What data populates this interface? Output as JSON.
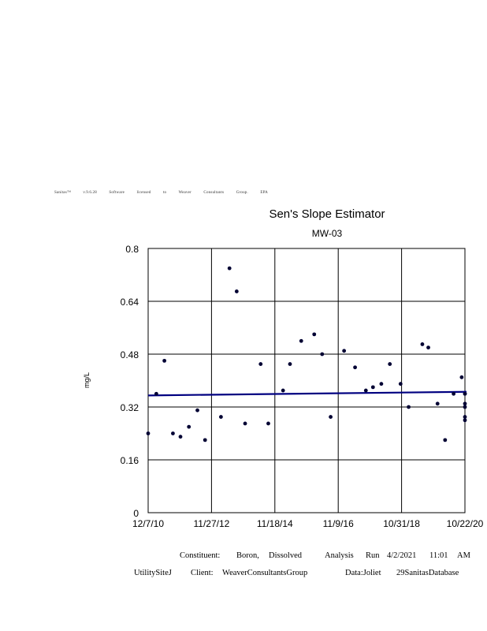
{
  "credit": [
    "Sanitas™",
    "v.9.6.28",
    "Software",
    "licensed",
    "to",
    "Weaver",
    "Consultants",
    "Group.",
    "EPA"
  ],
  "chart_data": {
    "type": "scatter",
    "title": "Sen's Slope Estimator",
    "subtitle": "MW-03",
    "xlabel": "",
    "ylabel": "mg/L",
    "x_tick_labels": [
      "12/7/10",
      "11/27/12",
      "11/18/14",
      "11/9/16",
      "10/31/18",
      "10/22/20"
    ],
    "y_tick_labels": [
      "0",
      "0.16",
      "0.32",
      "0.48",
      "0.64",
      "0.8"
    ],
    "ylim": [
      0,
      0.8
    ],
    "grid": true,
    "point_color": "#000033",
    "trend_color": "#000080",
    "series": [
      {
        "values": [
          {
            "x": "2010-12-07",
            "y": 0.24
          },
          {
            "x": "2011-03-10",
            "y": 0.36
          },
          {
            "x": "2011-06-10",
            "y": 0.46
          },
          {
            "x": "2011-09-15",
            "y": 0.24
          },
          {
            "x": "2011-12-10",
            "y": 0.23
          },
          {
            "x": "2012-03-15",
            "y": 0.26
          },
          {
            "x": "2012-06-20",
            "y": 0.31
          },
          {
            "x": "2012-09-15",
            "y": 0.22
          },
          {
            "x": "2013-03-15",
            "y": 0.29
          },
          {
            "x": "2013-06-20",
            "y": 0.74
          },
          {
            "x": "2013-09-10",
            "y": 0.67
          },
          {
            "x": "2013-12-15",
            "y": 0.27
          },
          {
            "x": "2014-06-10",
            "y": 0.45
          },
          {
            "x": "2014-09-05",
            "y": 0.27
          },
          {
            "x": "2015-02-20",
            "y": 0.37
          },
          {
            "x": "2015-05-10",
            "y": 0.45
          },
          {
            "x": "2015-09-15",
            "y": 0.52
          },
          {
            "x": "2016-02-10",
            "y": 0.54
          },
          {
            "x": "2016-05-10",
            "y": 0.48
          },
          {
            "x": "2016-08-15",
            "y": 0.29
          },
          {
            "x": "2017-01-15",
            "y": 0.49
          },
          {
            "x": "2017-05-20",
            "y": 0.44
          },
          {
            "x": "2017-09-20",
            "y": 0.37
          },
          {
            "x": "2017-12-10",
            "y": 0.38
          },
          {
            "x": "2018-03-15",
            "y": 0.39
          },
          {
            "x": "2018-06-20",
            "y": 0.45
          },
          {
            "x": "2018-10-20",
            "y": 0.39
          },
          {
            "x": "2019-01-20",
            "y": 0.32
          },
          {
            "x": "2019-06-25",
            "y": 0.51
          },
          {
            "x": "2019-09-01",
            "y": 0.5
          },
          {
            "x": "2019-12-15",
            "y": 0.33
          },
          {
            "x": "2020-03-10",
            "y": 0.22
          },
          {
            "x": "2020-06-15",
            "y": 0.36
          },
          {
            "x": "2020-09-15",
            "y": 0.41
          },
          {
            "x": "2020-12-20",
            "y": 0.36
          },
          {
            "x": "2021-02-20",
            "y": 0.32
          },
          {
            "x": "2021-05-10",
            "y": 0.33
          },
          {
            "x": "2021-08-01",
            "y": 0.36
          },
          {
            "x": "2021-10-20",
            "y": 0.28
          },
          {
            "x": "2022-01-15",
            "y": 0.29
          }
        ]
      }
    ],
    "trend_line": [
      {
        "x": "2010-12-07",
        "y": 0.355
      },
      {
        "x": "2020-10-22",
        "y": 0.366
      }
    ]
  },
  "footer": {
    "constituent_label": "Constituent:",
    "constituent_value_1": "Boron,",
    "constituent_value_2": "Dissolved",
    "analysis_label": "Analysis",
    "run_label": "Run",
    "run_date": "4/2/2021",
    "run_time": "11:01",
    "run_ampm": "AM",
    "site": "UtilitySiteJ",
    "client_label": "Client:",
    "client_value": "WeaverConsultantsGroup",
    "data_label": "Data:Joliet",
    "database": "29SanitasDatabase"
  }
}
